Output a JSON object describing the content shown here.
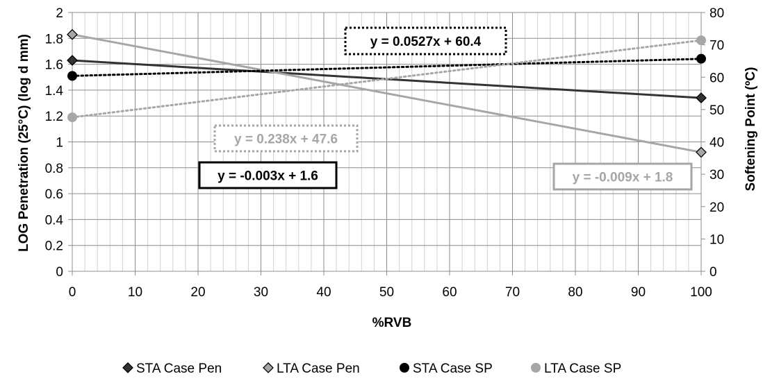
{
  "chart_data": {
    "type": "line",
    "x_axis": {
      "label": "%RVB",
      "min": 0,
      "max": 100,
      "major_ticks": [
        0,
        10,
        20,
        30,
        40,
        50,
        60,
        70,
        80,
        90,
        100
      ],
      "minor_step": 2
    },
    "y_axis_left": {
      "label": "LOG Penetration (25°C) (log d mm)",
      "min": 0,
      "max": 2,
      "ticks": [
        0,
        0.2,
        0.4,
        0.6,
        0.8,
        1,
        1.2,
        1.4,
        1.6,
        1.8,
        2
      ]
    },
    "y_axis_right": {
      "label": "Softening Point (ºC)",
      "min": 0,
      "max": 80,
      "ticks": [
        0,
        10,
        20,
        30,
        40,
        50,
        60,
        70,
        80
      ]
    },
    "grid": true,
    "legend_position": "bottom",
    "series": [
      {
        "name": "STA Case Pen",
        "axis": "left",
        "color": "#333333",
        "marker": "diamond",
        "x": [
          0,
          100
        ],
        "y": [
          1.63,
          1.34
        ]
      },
      {
        "name": "LTA Case Pen",
        "axis": "left",
        "color": "#a6a6a6",
        "marker": "diamond",
        "x": [
          0,
          100
        ],
        "y": [
          1.83,
          0.92
        ]
      },
      {
        "name": "STA Case SP",
        "axis": "right",
        "color": "#000000",
        "marker": "circle",
        "x": [
          0,
          100
        ],
        "y": [
          60.4,
          65.7
        ]
      },
      {
        "name": "LTA Case SP",
        "axis": "right",
        "color": "#a6a6a6",
        "marker": "circle",
        "x": [
          0,
          100
        ],
        "y": [
          47.6,
          71.4
        ]
      }
    ],
    "trendlines": [
      {
        "series": "STA Case Pen",
        "axis": "left",
        "x": [
          0,
          100
        ],
        "y": [
          1.63,
          1.34
        ],
        "style": "solid",
        "color": "#333333"
      },
      {
        "series": "LTA Case Pen",
        "axis": "left",
        "x": [
          0,
          100
        ],
        "y": [
          1.83,
          0.92
        ],
        "style": "solid",
        "color": "#a6a6a6"
      },
      {
        "series": "STA Case SP",
        "axis": "right",
        "x": [
          0,
          100
        ],
        "y": [
          60.4,
          65.67
        ],
        "style": "dotted",
        "color": "#000000"
      },
      {
        "series": "LTA Case SP",
        "axis": "right",
        "x": [
          0,
          100
        ],
        "y": [
          47.6,
          71.4
        ],
        "style": "dotted",
        "color": "#a6a6a6"
      }
    ],
    "equations": [
      {
        "text": "y = 0.0527x + 60.4",
        "color": "#000000",
        "border": "dotted"
      },
      {
        "text": "y = 0.238x + 47.6",
        "color": "#a6a6a6",
        "border": "dotted"
      },
      {
        "text": "y = -0.003x + 1.6",
        "color": "#000000",
        "border": "solid"
      },
      {
        "text": "y = -0.009x + 1.8",
        "color": "#a6a6a6",
        "border": "solid"
      }
    ]
  }
}
